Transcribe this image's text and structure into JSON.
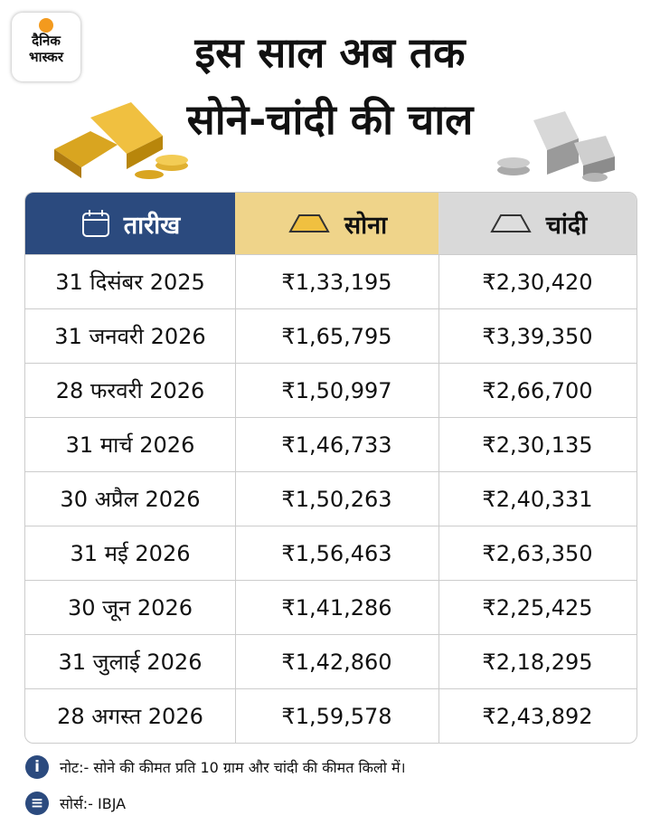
{
  "logo": {
    "line1": "दैनिक",
    "line2": "भास्कर"
  },
  "title": {
    "line1": "इस साल अब तक",
    "line2": "सोने-चांदी की चाल"
  },
  "table": {
    "headers": [
      "तारीख",
      "सोना",
      "चांदी"
    ],
    "rows": [
      [
        "31 दिसंबर 2025",
        "₹1,33,195",
        "₹2,30,420"
      ],
      [
        "31 जनवरी 2026",
        "₹1,65,795",
        "₹3,39,350"
      ],
      [
        "28 फरवरी 2026",
        "₹1,50,997",
        "₹2,66,700"
      ],
      [
        "31 मार्च 2026",
        "₹1,46,733",
        "₹2,30,135"
      ],
      [
        "30 अप्रैल 2026",
        "₹1,50,263",
        "₹2,40,331"
      ],
      [
        "31 मई 2026",
        "₹1,56,463",
        "₹2,63,350"
      ],
      [
        "30 जून 2026",
        "₹1,41,286",
        "₹2,25,425"
      ],
      [
        "31 जुलाई 2026",
        "₹1,42,860",
        "₹2,18,295"
      ],
      [
        "28 अगस्त 2026",
        "₹1,59,578",
        "₹2,43,892"
      ]
    ]
  },
  "note": "नोट:- सोने की कीमत प्रति 10 ग्राम और चांदी की कीमत किलो में।",
  "source": "सोर्स:- IBJA"
}
